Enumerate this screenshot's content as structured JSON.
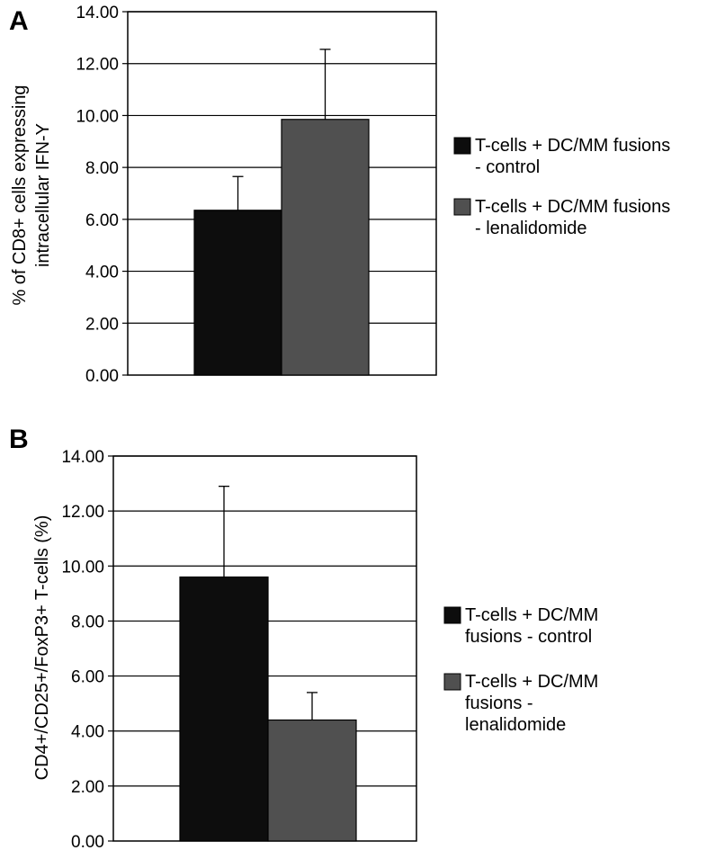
{
  "chart_data": [
    {
      "type": "bar",
      "panel": "A",
      "categories": [
        "T-cells + DC/MM fusions - control",
        "T-cells + DC/MM fusions - lenalidomide"
      ],
      "values": [
        6.35,
        9.85
      ],
      "errors": [
        1.3,
        2.7
      ],
      "colors": [
        "#0d0d0d",
        "#505050"
      ],
      "ylabel_lines": [
        "% of CD8+ cells expressing",
        "intracellular IFN-Y"
      ],
      "ylim": [
        0,
        14
      ],
      "ticks": [
        0,
        2,
        4,
        6,
        8,
        10,
        12,
        14
      ],
      "tick_labels": [
        "0.00",
        "2.00",
        "4.00",
        "6.00",
        "8.00",
        "10.00",
        "12.00",
        "14.00"
      ],
      "grid": true,
      "legend": [
        {
          "lines": [
            "T-cells + DC/MM fusions",
            "- control"
          ],
          "color": "#0d0d0d"
        },
        {
          "lines": [
            "T-cells + DC/MM fusions",
            "- lenalidomide"
          ],
          "color": "#505050"
        }
      ]
    },
    {
      "type": "bar",
      "panel": "B",
      "categories": [
        "T-cells + DC/MM fusions - control",
        "T-cells + DC/MM fusions - lenalidomide"
      ],
      "values": [
        9.6,
        4.4
      ],
      "errors": [
        3.3,
        1.0
      ],
      "colors": [
        "#0d0d0d",
        "#505050"
      ],
      "ylabel_lines": [
        "CD4+/CD25+/FoxP3+ T-cells (%)"
      ],
      "ylim": [
        0,
        14
      ],
      "ticks": [
        0,
        2,
        4,
        6,
        8,
        10,
        12,
        14
      ],
      "tick_labels": [
        "0.00",
        "2.00",
        "4.00",
        "6.00",
        "8.00",
        "10.00",
        "12.00",
        "14.00"
      ],
      "grid": true,
      "legend": [
        {
          "lines": [
            "T-cells + DC/MM fusions - control"
          ],
          "display_lines": [
            "T-cells + DC/MM",
            "fusions - control"
          ],
          "color": "#0d0d0d"
        },
        {
          "lines": [
            "T-cells + DC/MM fusions - lenalidomide"
          ],
          "display_lines": [
            "T-cells + DC/MM",
            "fusions -",
            "lenalidomide"
          ],
          "color": "#505050"
        }
      ]
    }
  ]
}
